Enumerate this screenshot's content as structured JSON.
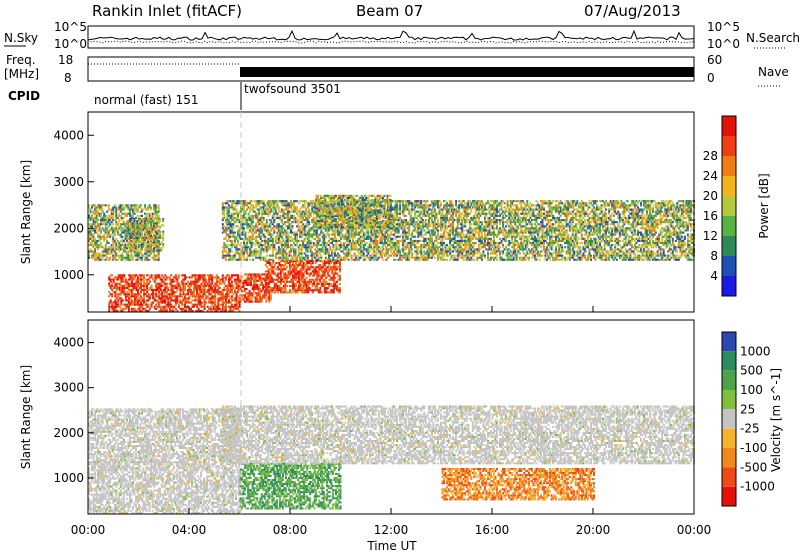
{
  "header": {
    "station": "Rankin Inlet (fitACF)",
    "beam": "Beam 07",
    "date": "07/Aug/2013"
  },
  "left_labels": {
    "nsky": "N.Sky",
    "freq_a": "Freq.",
    "freq_b": "[MHz]",
    "cpid": "CPID"
  },
  "right_labels": {
    "nsearch": "N.Search",
    "nave": "Nave"
  },
  "noise_axis": {
    "left_ticks": [
      "10^5",
      "10^0"
    ],
    "right_ticks": [
      "10^5",
      "10^0"
    ]
  },
  "freq_axis": {
    "left_ticks": [
      "18",
      "8"
    ],
    "right_ticks": [
      "60",
      "0"
    ]
  },
  "cpid_segments": [
    {
      "label": "normal (fast) 151",
      "start_hour": 0,
      "end_hour": 6
    },
    {
      "label": "twofsound 3501",
      "start_hour": 6,
      "end_hour": 24
    }
  ],
  "time_axis": {
    "label": "Time UT",
    "ticks": [
      "00:00",
      "04:00",
      "08:00",
      "12:00",
      "16:00",
      "20:00",
      "00:00"
    ]
  },
  "chart_data": [
    {
      "type": "heatmap",
      "panel": "power",
      "ylabel": "Slant Range [km]",
      "yticks": [
        1000,
        2000,
        3000,
        4000
      ],
      "ylim": [
        200,
        4500
      ],
      "xlim_hours": [
        0,
        24
      ],
      "colorbar": {
        "label": "Power [dB]",
        "ticks": [
          "4",
          "8",
          "12",
          "16",
          "20",
          "24",
          "28"
        ],
        "colors": [
          "#1a1ae6",
          "#1f4fb4",
          "#2d8a56",
          "#58b246",
          "#b6c83c",
          "#f4b41e",
          "#f07d14",
          "#ef3d14",
          "#e3120b"
        ]
      },
      "regions": [
        {
          "x": [
            0.8,
            6
          ],
          "y": [
            200,
            1000
          ],
          "level": "high"
        },
        {
          "x": [
            6,
            7.2
          ],
          "y": [
            400,
            1000
          ],
          "level": "high"
        },
        {
          "x": [
            7,
            10
          ],
          "y": [
            600,
            1300
          ],
          "level": "high"
        },
        {
          "x": [
            0,
            2.8
          ],
          "y": [
            1300,
            2500
          ],
          "level": "mid"
        },
        {
          "x": [
            1.5,
            3
          ],
          "y": [
            1500,
            2200
          ],
          "level": "mid"
        },
        {
          "x": [
            5.3,
            24
          ],
          "y": [
            1300,
            2600
          ],
          "level": "mid"
        },
        {
          "x": [
            9,
            12
          ],
          "y": [
            2000,
            2700
          ],
          "level": "mid"
        }
      ]
    },
    {
      "type": "heatmap",
      "panel": "velocity",
      "ylabel": "Slant Range [km]",
      "yticks": [
        1000,
        2000,
        3000,
        4000
      ],
      "ylim": [
        200,
        4500
      ],
      "xlim_hours": [
        0,
        24
      ],
      "colorbar": {
        "label": "Velocity [m s^-1]",
        "ticks": [
          "1000",
          "500",
          "100",
          "25",
          "-25",
          "-100",
          "-500",
          "-1000"
        ],
        "colors": [
          "#2b47b4",
          "#2c8c5c",
          "#4da24a",
          "#7fbf3c",
          "#c4c4c4",
          "#f5b22a",
          "#f08a1a",
          "#f04a14",
          "#e8100a"
        ]
      },
      "regions": [
        {
          "x": [
            0,
            6
          ],
          "y": [
            200,
            2500
          ],
          "level": "near zero"
        },
        {
          "x": [
            6,
            10
          ],
          "y": [
            300,
            1300
          ],
          "level": "positive"
        },
        {
          "x": [
            5.3,
            24
          ],
          "y": [
            1300,
            2600
          ],
          "level": "near zero"
        },
        {
          "x": [
            14,
            20
          ],
          "y": [
            500,
            1200
          ],
          "level": "negative"
        }
      ]
    }
  ]
}
